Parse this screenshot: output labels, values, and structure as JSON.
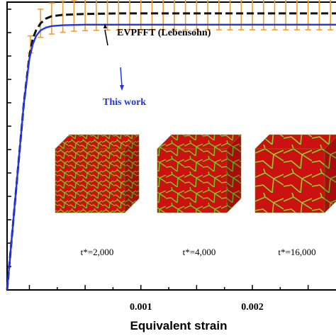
{
  "chart_data": {
    "type": "line",
    "xlabel": "Equivalent strain",
    "ylabel": "",
    "title": "",
    "xlim": [
      -0.0002,
      0.00275
    ],
    "ylim": [
      0,
      1.02
    ],
    "x_ticks": [
      0.001,
      0.002
    ],
    "x_tick_labels": [
      "0.001",
      "0.002"
    ],
    "grid": false,
    "series": [
      {
        "name": "EVPFFT (Lebensohn)",
        "color": "#111111",
        "style": "dashed",
        "x": [
          -0.0002,
          -0.00015,
          -0.0001,
          -5e-05,
          0.0,
          3e-05,
          6e-05,
          0.0001,
          0.00015,
          0.0002,
          0.0003,
          0.0005,
          0.0008,
          0.0012,
          0.0016,
          0.002,
          0.0024,
          0.00275
        ],
        "y": [
          0.0,
          0.22,
          0.44,
          0.66,
          0.83,
          0.89,
          0.92,
          0.945,
          0.962,
          0.97,
          0.975,
          0.978,
          0.98,
          0.98,
          0.98,
          0.98,
          0.98,
          0.98
        ]
      },
      {
        "name": "This work",
        "color": "#2233ee",
        "style": "solid",
        "x": [
          -0.0002,
          -0.00015,
          -0.0001,
          -5e-05,
          0.0,
          3e-05,
          6e-05,
          0.0001,
          0.00015,
          0.0002,
          0.0003,
          0.0005,
          0.0008,
          0.0012,
          0.0016,
          0.002,
          0.0024,
          0.00275
        ],
        "y": [
          0.0,
          0.22,
          0.44,
          0.66,
          0.82,
          0.87,
          0.9,
          0.92,
          0.93,
          0.935,
          0.938,
          0.94,
          0.94,
          0.94,
          0.94,
          0.94,
          0.94,
          0.94
        ]
      }
    ],
    "error_bars": {
      "color": "#f0a030",
      "x": [
        1e-05,
        0.0001,
        0.0002,
        0.0003,
        0.0004,
        0.0005,
        0.0006,
        0.0007,
        0.0008,
        0.0009,
        0.001,
        0.0011,
        0.0012,
        0.0013,
        0.0014,
        0.0015,
        0.0016,
        0.0017,
        0.0018,
        0.0019,
        0.002,
        0.0021,
        0.0022,
        0.0023,
        0.0024,
        0.0025,
        0.0026,
        0.0027
      ],
      "y": [
        0.87,
        0.945,
        0.962,
        0.968,
        0.972,
        0.974,
        0.975,
        0.976,
        0.976,
        0.977,
        0.977,
        0.977,
        0.977,
        0.977,
        0.977,
        0.977,
        0.977,
        0.977,
        0.977,
        0.977,
        0.977,
        0.977,
        0.977,
        0.977,
        0.977,
        0.977,
        0.977,
        0.977
      ],
      "err": [
        0.03,
        0.05,
        0.055,
        0.055,
        0.055,
        0.055,
        0.055,
        0.055,
        0.055,
        0.055,
        0.055,
        0.055,
        0.055,
        0.055,
        0.055,
        0.055,
        0.055,
        0.055,
        0.055,
        0.055,
        0.055,
        0.055,
        0.055,
        0.055,
        0.055,
        0.055,
        0.055,
        0.055
      ]
    },
    "annotations": {
      "evpfft_label": "EVPFFT (Lebensohn)",
      "this_work_label": "This work"
    },
    "insets": [
      {
        "label": "t*=2,000",
        "grain": "fine"
      },
      {
        "label": "t*=4,000",
        "grain": "medium"
      },
      {
        "label": "t*=16,000",
        "grain": "coarse"
      }
    ],
    "colors": {
      "grain_fill": "#cc1111",
      "grain_boundary": "#77cc22"
    }
  }
}
